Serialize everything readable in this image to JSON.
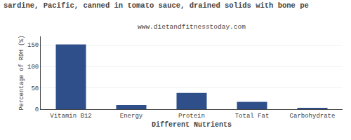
{
  "chart_data": {
    "type": "bar",
    "title": "sardine, Pacific, canned in tomato sauce, drained solids with bone pe",
    "subtitle": "www.dietandfitnesstoday.com",
    "xlabel": "Different Nutrients",
    "ylabel": "Percentage of RDH (%)",
    "categories": [
      "Vitamin B12",
      "Energy",
      "Protein",
      "Total Fat",
      "Carbohydrate"
    ],
    "values": [
      151,
      10,
      38,
      17,
      2
    ],
    "color": "#2e4f8a",
    "ylim": [
      0,
      170
    ],
    "yticks": [
      0,
      50,
      100,
      150
    ],
    "grid": true
  }
}
